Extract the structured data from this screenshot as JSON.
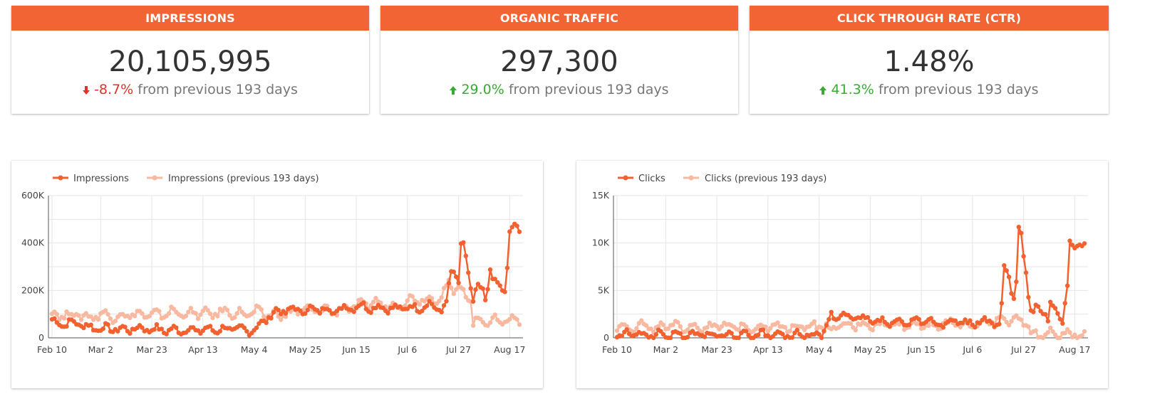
{
  "scorecards": [
    {
      "title": "IMPRESSIONS",
      "value": "20,105,995",
      "change": "-8.7%",
      "direction": "down",
      "suffix": "from previous 193 days"
    },
    {
      "title": "ORGANIC TRAFFIC",
      "value": "297,300",
      "change": "29.0%",
      "direction": "up",
      "suffix": "from previous 193 days"
    },
    {
      "title": "CLICK THROUGH RATE (CTR)",
      "value": "1.48%",
      "change": "41.3%",
      "direction": "up",
      "suffix": "from previous 193 days"
    }
  ],
  "colors": {
    "accent": "#f26434",
    "current": "#f2612f",
    "previous": "#f9b9a0",
    "negative": "#e0312a",
    "positive": "#3aa935"
  },
  "chart_data": [
    {
      "type": "line",
      "legend_position": "top-left",
      "grid": true,
      "x_ticks": [
        "Feb 10",
        "Mar 2",
        "Mar 23",
        "Apr 13",
        "May 4",
        "May 25",
        "Jun 15",
        "Jul 6",
        "Jul 27",
        "Aug 17"
      ],
      "x_tick_day_index": [
        0,
        20,
        41,
        62,
        83,
        104,
        125,
        146,
        167,
        188
      ],
      "y_ticks": [
        "0",
        "200K",
        "400K",
        "600K"
      ],
      "ylim": [
        0,
        600000
      ],
      "n_points": 193,
      "series": [
        {
          "name": "Impressions",
          "keypoints": [
            [
              0,
              70000
            ],
            [
              5,
              58000
            ],
            [
              10,
              65000
            ],
            [
              15,
              45000
            ],
            [
              20,
              40000
            ],
            [
              25,
              38000
            ],
            [
              30,
              35000
            ],
            [
              35,
              40000
            ],
            [
              40,
              38000
            ],
            [
              45,
              33000
            ],
            [
              50,
              32000
            ],
            [
              55,
              33000
            ],
            [
              60,
              33000
            ],
            [
              65,
              35000
            ],
            [
              70,
              36000
            ],
            [
              75,
              40000
            ],
            [
              80,
              30000
            ],
            [
              84,
              40000
            ],
            [
              88,
              80000
            ],
            [
              92,
              110000
            ],
            [
              96,
              115000
            ],
            [
              100,
              120000
            ],
            [
              104,
              115000
            ],
            [
              108,
              120000
            ],
            [
              112,
              120000
            ],
            [
              116,
              115000
            ],
            [
              120,
              125000
            ],
            [
              124,
              130000
            ],
            [
              128,
              135000
            ],
            [
              132,
              125000
            ],
            [
              136,
              130000
            ],
            [
              140,
              120000
            ],
            [
              145,
              130000
            ],
            [
              150,
              125000
            ],
            [
              155,
              140000
            ],
            [
              158,
              130000
            ],
            [
              160,
              110000
            ],
            [
              162,
              150000
            ],
            [
              164,
              280000
            ],
            [
              165,
              290000
            ],
            [
              166,
              260000
            ],
            [
              167,
              230000
            ],
            [
              168,
              390000
            ],
            [
              169,
              380000
            ],
            [
              170,
              330000
            ],
            [
              171,
              280000
            ],
            [
              172,
              220000
            ],
            [
              173,
              160000
            ],
            [
              174,
              200000
            ],
            [
              175,
              210000
            ],
            [
              176,
              200000
            ],
            [
              177,
              190000
            ],
            [
              178,
              160000
            ],
            [
              179,
              210000
            ],
            [
              180,
              300000
            ],
            [
              181,
              260000
            ],
            [
              182,
              230000
            ],
            [
              184,
              210000
            ],
            [
              186,
              200000
            ],
            [
              187,
              300000
            ],
            [
              188,
              450000
            ],
            [
              189,
              460000
            ]
          ]
        },
        {
          "name": "Impressions (previous 193 days)",
          "keypoints": [
            [
              0,
              100000
            ],
            [
              5,
              95000
            ],
            [
              10,
              100000
            ],
            [
              15,
              85000
            ],
            [
              20,
              100000
            ],
            [
              25,
              90000
            ],
            [
              30,
              95000
            ],
            [
              35,
              100000
            ],
            [
              40,
              95000
            ],
            [
              45,
              100000
            ],
            [
              50,
              110000
            ],
            [
              55,
              100000
            ],
            [
              60,
              105000
            ],
            [
              65,
              100000
            ],
            [
              70,
              110000
            ],
            [
              75,
              105000
            ],
            [
              80,
              100000
            ],
            [
              84,
              110000
            ],
            [
              88,
              100000
            ],
            [
              92,
              95000
            ],
            [
              96,
              100000
            ],
            [
              100,
              110000
            ],
            [
              104,
              120000
            ],
            [
              108,
              115000
            ],
            [
              112,
              120000
            ],
            [
              116,
              110000
            ],
            [
              120,
              125000
            ],
            [
              124,
              130000
            ],
            [
              128,
              140000
            ],
            [
              132,
              150000
            ],
            [
              136,
              140000
            ],
            [
              140,
              130000
            ],
            [
              145,
              155000
            ],
            [
              150,
              165000
            ],
            [
              155,
              160000
            ],
            [
              160,
              175000
            ],
            [
              163,
              230000
            ],
            [
              165,
              200000
            ],
            [
              168,
              210000
            ],
            [
              170,
              180000
            ],
            [
              172,
              160000
            ],
            [
              173,
              70000
            ],
            [
              176,
              70000
            ],
            [
              180,
              75000
            ],
            [
              184,
              70000
            ],
            [
              188,
              80000
            ],
            [
              192,
              70000
            ]
          ]
        }
      ]
    },
    {
      "type": "line",
      "legend_position": "top-left",
      "grid": true,
      "x_ticks": [
        "Feb 10",
        "Mar 2",
        "Mar 23",
        "Apr 13",
        "May 4",
        "May 25",
        "Jun 15",
        "Jul 6",
        "Jul 27",
        "Aug 17"
      ],
      "x_tick_day_index": [
        0,
        20,
        41,
        62,
        83,
        104,
        125,
        146,
        167,
        188
      ],
      "y_ticks": [
        "0",
        "5K",
        "10K",
        "15K"
      ],
      "ylim": [
        0,
        15000
      ],
      "n_points": 193,
      "series": [
        {
          "name": "Clicks",
          "keypoints": [
            [
              0,
              300
            ],
            [
              5,
              400
            ],
            [
              10,
              350
            ],
            [
              15,
              300
            ],
            [
              20,
              350
            ],
            [
              25,
              300
            ],
            [
              30,
              300
            ],
            [
              35,
              350
            ],
            [
              40,
              300
            ],
            [
              45,
              300
            ],
            [
              50,
              250
            ],
            [
              55,
              300
            ],
            [
              60,
              300
            ],
            [
              65,
              250
            ],
            [
              70,
              250
            ],
            [
              75,
              300
            ],
            [
              80,
              250
            ],
            [
              84,
              400
            ],
            [
              86,
              1200
            ],
            [
              88,
              2200
            ],
            [
              90,
              2000
            ],
            [
              92,
              2500
            ],
            [
              94,
              2200
            ],
            [
              96,
              1800
            ],
            [
              98,
              2300
            ],
            [
              100,
              2000
            ],
            [
              104,
              1800
            ],
            [
              108,
              1700
            ],
            [
              112,
              1600
            ],
            [
              116,
              1500
            ],
            [
              120,
              1600
            ],
            [
              124,
              1800
            ],
            [
              128,
              1700
            ],
            [
              132,
              1500
            ],
            [
              136,
              1600
            ],
            [
              140,
              1800
            ],
            [
              144,
              1500
            ],
            [
              148,
              1700
            ],
            [
              152,
              1800
            ],
            [
              155,
              1600
            ],
            [
              157,
              1000
            ],
            [
              158,
              3500
            ],
            [
              159,
              7500
            ],
            [
              160,
              7000
            ],
            [
              161,
              6500
            ],
            [
              162,
              5000
            ],
            [
              163,
              4000
            ],
            [
              164,
              5500
            ],
            [
              165,
              11500
            ],
            [
              166,
              11000
            ],
            [
              167,
              9000
            ],
            [
              168,
              7000
            ],
            [
              169,
              4500
            ],
            [
              170,
              3000
            ],
            [
              171,
              2500
            ],
            [
              172,
              3200
            ],
            [
              174,
              3000
            ],
            [
              176,
              2500
            ],
            [
              177,
              1800
            ],
            [
              178,
              3500
            ],
            [
              180,
              3000
            ],
            [
              182,
              2500
            ],
            [
              183,
              1800
            ],
            [
              185,
              5000
            ],
            [
              186,
              10000
            ],
            [
              187,
              9800
            ]
          ]
        },
        {
          "name": "Clicks (previous 193 days)",
          "keypoints": [
            [
              0,
              1300
            ],
            [
              5,
              1100
            ],
            [
              10,
              1300
            ],
            [
              15,
              1000
            ],
            [
              20,
              1200
            ],
            [
              25,
              1100
            ],
            [
              30,
              1200
            ],
            [
              35,
              1100
            ],
            [
              40,
              1300
            ],
            [
              45,
              1100
            ],
            [
              50,
              1200
            ],
            [
              55,
              1100
            ],
            [
              60,
              1200
            ],
            [
              65,
              1300
            ],
            [
              70,
              1100
            ],
            [
              75,
              1200
            ],
            [
              80,
              1300
            ],
            [
              84,
              1200
            ],
            [
              88,
              900
            ],
            [
              92,
              1200
            ],
            [
              96,
              1300
            ],
            [
              100,
              1400
            ],
            [
              104,
              1400
            ],
            [
              108,
              1300
            ],
            [
              112,
              1500
            ],
            [
              116,
              1400
            ],
            [
              120,
              1300
            ],
            [
              124,
              1500
            ],
            [
              128,
              1400
            ],
            [
              132,
              1300
            ],
            [
              136,
              1500
            ],
            [
              140,
              1600
            ],
            [
              144,
              1400
            ],
            [
              148,
              1500
            ],
            [
              152,
              1600
            ],
            [
              156,
              1800
            ],
            [
              160,
              1900
            ],
            [
              164,
              1800
            ],
            [
              166,
              2000
            ],
            [
              168,
              1700
            ],
            [
              170,
              400
            ],
            [
              174,
              300
            ],
            [
              178,
              400
            ],
            [
              182,
              300
            ],
            [
              186,
              400
            ],
            [
              190,
              300
            ],
            [
              192,
              300
            ]
          ]
        }
      ]
    }
  ]
}
